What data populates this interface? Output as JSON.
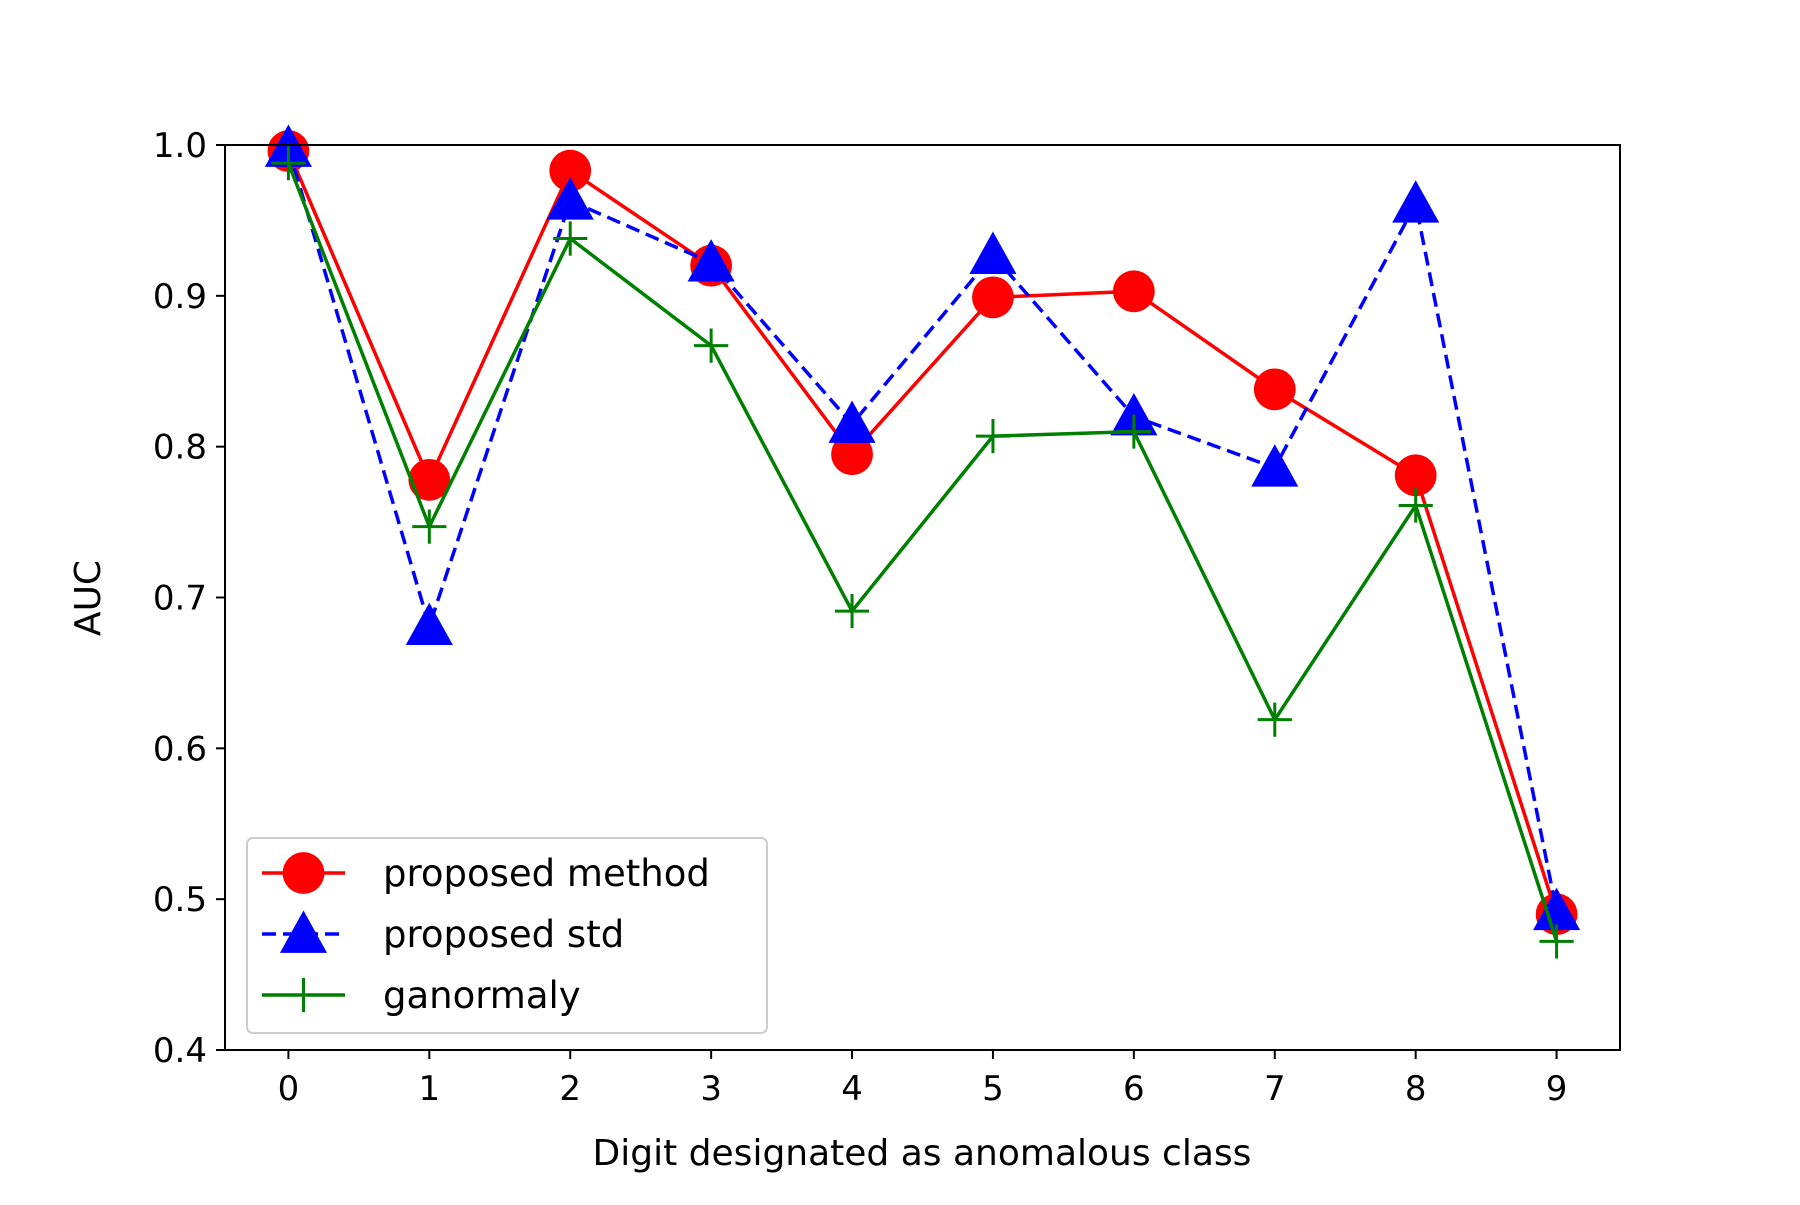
{
  "chart_data": {
    "type": "line",
    "title": "",
    "xlabel": "Digit designated as anomalous class",
    "ylabel": "AUC",
    "x": [
      0,
      1,
      2,
      3,
      4,
      5,
      6,
      7,
      8,
      9
    ],
    "x_tick_labels": [
      "0",
      "1",
      "2",
      "3",
      "4",
      "5",
      "6",
      "7",
      "8",
      "9"
    ],
    "xlim": [
      -0.45,
      9.45
    ],
    "ylim": [
      0.4,
      1.0
    ],
    "y_ticks": [
      0.4,
      0.5,
      0.6,
      0.7,
      0.8,
      0.9,
      1.0
    ],
    "y_tick_labels": [
      "0.4",
      "0.5",
      "0.6",
      "0.7",
      "0.8",
      "0.9",
      "1.0"
    ],
    "grid": false,
    "legend_position": "lower-left",
    "series": [
      {
        "name": "proposed method",
        "color": "#ff0000",
        "line_style": "solid",
        "marker": "circle",
        "values": [
          0.996,
          0.778,
          0.983,
          0.92,
          0.795,
          0.899,
          0.903,
          0.838,
          0.781,
          0.49
        ]
      },
      {
        "name": "proposed std",
        "color": "#0000ff",
        "line_style": "dashed",
        "marker": "triangle",
        "values": [
          0.998,
          0.681,
          0.963,
          0.922,
          0.815,
          0.927,
          0.82,
          0.786,
          0.961,
          0.492
        ]
      },
      {
        "name": "ganormaly",
        "color": "#008000",
        "line_style": "solid",
        "marker": "plus",
        "values": [
          0.988,
          0.747,
          0.938,
          0.867,
          0.691,
          0.807,
          0.81,
          0.619,
          0.761,
          0.472
        ]
      }
    ]
  }
}
